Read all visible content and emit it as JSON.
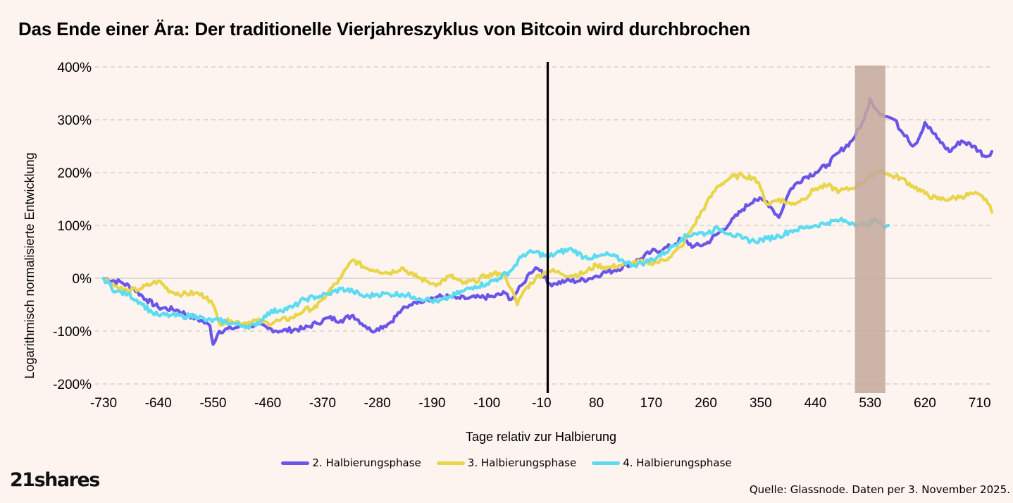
{
  "title": "Das Ende einer Ära: Der traditionelle Vierjahreszyklus von Bitcoin wird durchbrochen",
  "logo_text": "21shares",
  "source": "Quelle: Glassnode. Daten per 3. November 2025.",
  "chart_data": {
    "type": "line",
    "title": "Das Ende einer Ära: Der traditionelle Vierjahreszyklus von Bitcoin wird durchbrochen",
    "xlabel": "Tage relativ zur Halbierung",
    "ylabel": "Logarithmisch normalisierte Entwicklung",
    "xlim": [
      -730,
      730
    ],
    "ylim": [
      -200,
      400
    ],
    "x_ticks": [
      -730,
      -640,
      -550,
      -460,
      -370,
      -280,
      -190,
      -100,
      -10,
      80,
      170,
      260,
      350,
      440,
      530,
      620,
      710
    ],
    "x_tick_labels": [
      "-730",
      "-640",
      "-550",
      "-460",
      "-370",
      "-280",
      "-190",
      "-100",
      "-10",
      "80",
      "170",
      "260",
      "350",
      "440",
      "530",
      "620",
      "710"
    ],
    "y_ticks": [
      -200,
      -100,
      0,
      100,
      200,
      300,
      400
    ],
    "y_tick_labels": [
      "-200%",
      "-100%",
      "0%",
      "100%",
      "200%",
      "300%",
      "400%"
    ],
    "grid": "horizontal dashed",
    "legend_position": "bottom-center",
    "halving_day": 0,
    "shaded_region": {
      "x_start": 505,
      "x_end": 555,
      "color": "#c4a89c"
    },
    "series": [
      {
        "name": "2. Halbierungsphase",
        "color": "#6b55e8",
        "x": [
          -730,
          -700,
          -680,
          -660,
          -640,
          -610,
          -590,
          -570,
          -555,
          -550,
          -540,
          -520,
          -500,
          -480,
          -460,
          -440,
          -400,
          -380,
          -360,
          -340,
          -320,
          -300,
          -290,
          -280,
          -260,
          -240,
          -230,
          -220,
          -200,
          -180,
          -160,
          -150,
          -130,
          -110,
          -90,
          -70,
          -60,
          -50,
          -40,
          -30,
          -20,
          -10,
          0,
          10,
          30,
          50,
          70,
          90,
          110,
          130,
          150,
          170,
          190,
          210,
          220,
          240,
          260,
          280,
          300,
          320,
          340,
          360,
          370,
          380,
          390,
          400,
          420,
          440,
          460,
          480,
          500,
          520,
          530,
          540,
          550,
          560,
          570,
          580,
          590,
          600,
          610,
          620,
          640,
          660,
          680,
          700,
          720,
          730
        ],
        "values": [
          0,
          -8,
          -20,
          -40,
          -55,
          -60,
          -70,
          -80,
          -90,
          -125,
          -100,
          -95,
          -90,
          -88,
          -95,
          -100,
          -95,
          -85,
          -75,
          -80,
          -70,
          -90,
          -100,
          -95,
          -85,
          -60,
          -55,
          -45,
          -40,
          -35,
          -35,
          -38,
          -38,
          -36,
          -35,
          -28,
          -40,
          -25,
          -10,
          10,
          20,
          15,
          -10,
          -10,
          -5,
          -5,
          0,
          10,
          15,
          25,
          35,
          50,
          55,
          65,
          75,
          60,
          65,
          85,
          105,
          130,
          150,
          145,
          130,
          115,
          145,
          170,
          190,
          200,
          215,
          240,
          260,
          300,
          340,
          320,
          310,
          305,
          300,
          280,
          270,
          250,
          265,
          295,
          265,
          240,
          260,
          250,
          230,
          240
        ]
      },
      {
        "name": "3. Halbierungsphase",
        "color": "#e8d54a",
        "x": [
          -730,
          -710,
          -690,
          -670,
          -650,
          -640,
          -620,
          -600,
          -580,
          -560,
          -550,
          -540,
          -520,
          -500,
          -480,
          -460,
          -440,
          -420,
          -400,
          -380,
          -370,
          -360,
          -340,
          -330,
          -320,
          -300,
          -280,
          -260,
          -240,
          -220,
          -200,
          -190,
          -180,
          -160,
          -140,
          -120,
          -100,
          -80,
          -70,
          -60,
          -50,
          -40,
          -20,
          0,
          20,
          40,
          60,
          80,
          100,
          120,
          140,
          160,
          180,
          200,
          220,
          240,
          260,
          280,
          300,
          320,
          340,
          350,
          360,
          380,
          400,
          420,
          440,
          460,
          480,
          500,
          520,
          540,
          550,
          560,
          580,
          600,
          620,
          640,
          660,
          680,
          700,
          720,
          730
        ],
        "values": [
          0,
          -15,
          -25,
          -20,
          -10,
          -5,
          -25,
          -30,
          -28,
          -35,
          -50,
          -85,
          -80,
          -85,
          -80,
          -85,
          -80,
          -75,
          -60,
          -55,
          -40,
          -25,
          0,
          20,
          35,
          20,
          15,
          10,
          20,
          5,
          -5,
          -10,
          -10,
          5,
          -10,
          -5,
          5,
          10,
          5,
          -20,
          -50,
          -25,
          0,
          15,
          10,
          5,
          10,
          25,
          20,
          25,
          30,
          30,
          30,
          40,
          60,
          100,
          140,
          175,
          190,
          195,
          190,
          170,
          140,
          150,
          140,
          150,
          170,
          175,
          165,
          170,
          185,
          200,
          205,
          195,
          190,
          175,
          160,
          150,
          150,
          155,
          160,
          150,
          125
        ]
      },
      {
        "name": "4. Halbierungsphase",
        "color": "#5ddbf0",
        "x": [
          -730,
          -710,
          -690,
          -670,
          -650,
          -640,
          -620,
          -600,
          -580,
          -560,
          -540,
          -520,
          -500,
          -480,
          -460,
          -440,
          -420,
          -400,
          -380,
          -360,
          -340,
          -320,
          -300,
          -280,
          -260,
          -240,
          -220,
          -200,
          -180,
          -160,
          -140,
          -120,
          -100,
          -80,
          -60,
          -40,
          -20,
          0,
          20,
          40,
          60,
          80,
          100,
          120,
          140,
          160,
          180,
          200,
          220,
          240,
          260,
          280,
          300,
          320,
          340,
          360,
          380,
          400,
          420,
          440,
          460,
          480,
          500,
          520,
          540,
          550,
          560
        ],
        "values": [
          0,
          -25,
          -30,
          -45,
          -65,
          -70,
          -70,
          -72,
          -70,
          -80,
          -80,
          -85,
          -90,
          -90,
          -65,
          -60,
          -55,
          -40,
          -35,
          -30,
          -20,
          -25,
          -35,
          -30,
          -30,
          -30,
          -35,
          -40,
          -45,
          -35,
          -25,
          -15,
          -10,
          0,
          15,
          45,
          50,
          40,
          50,
          55,
          40,
          40,
          45,
          35,
          25,
          30,
          40,
          55,
          75,
          85,
          85,
          95,
          85,
          75,
          70,
          75,
          80,
          90,
          95,
          100,
          105,
          110,
          105,
          100,
          110,
          100,
          100
        ]
      }
    ]
  }
}
